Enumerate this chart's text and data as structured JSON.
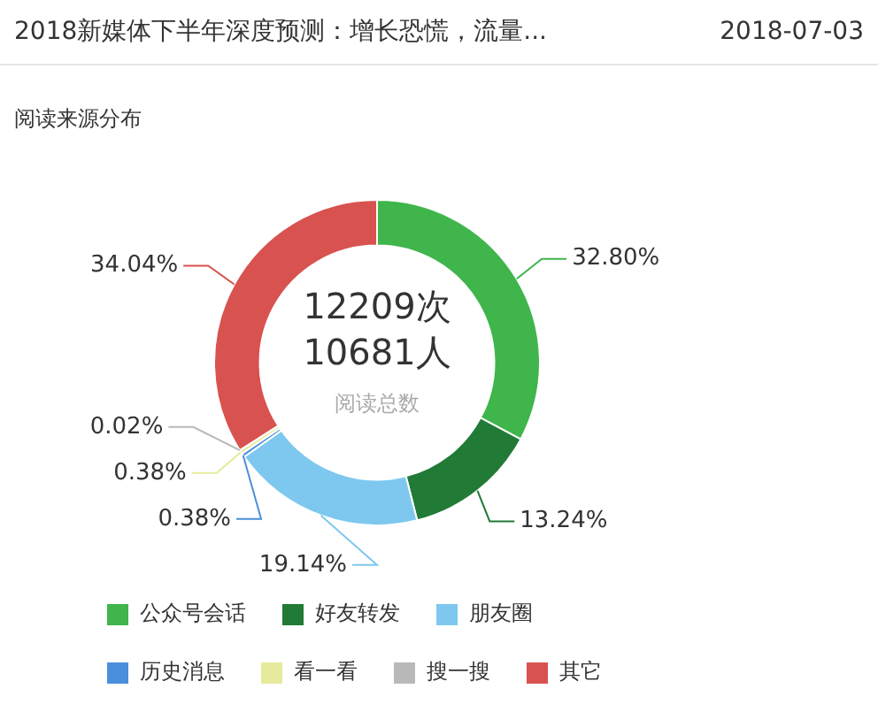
{
  "chart_data": {
    "type": "donut",
    "title": "2018新媒体下半年深度预测：增长恐慌，流量...",
    "subtitle": "阅读来源分布",
    "annotations": [
      "2018-07-03",
      "12209次",
      "10681人",
      "阅读总数"
    ],
    "categories": [
      "公众号会话",
      "好友转发",
      "朋友圈",
      "历史消息",
      "看一看",
      "搜一搜",
      "其它"
    ],
    "values": [
      32.8,
      13.24,
      19.14,
      0.38,
      0.38,
      0.02,
      34.04
    ],
    "value_labels": [
      "32.80%",
      "13.24%",
      "19.14%",
      "0.38%",
      "0.38%",
      "0.02%",
      "34.04%"
    ],
    "colors": [
      "#3fb54b",
      "#217a36",
      "#7ec8ef",
      "#4a8fdc",
      "#e6ea9c",
      "#b9b9b9",
      "#d85250"
    ],
    "legend": "bottom"
  }
}
